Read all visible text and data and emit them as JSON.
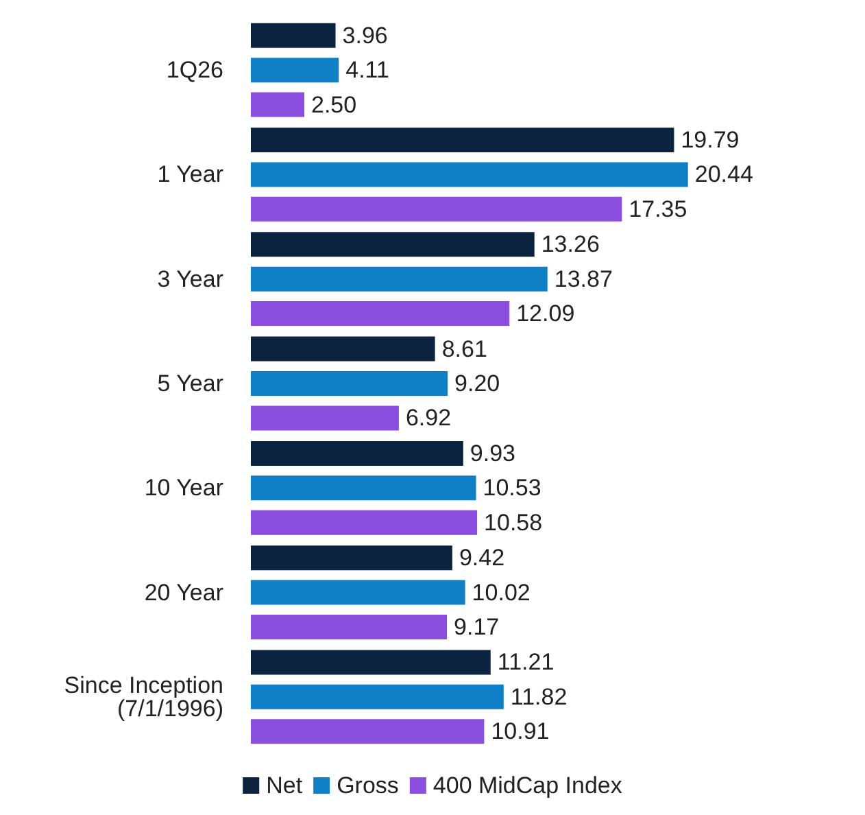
{
  "chart_data": {
    "type": "bar",
    "orientation": "horizontal",
    "categories": [
      "1Q26",
      "1 Year",
      "3 Year",
      "5 Year",
      "10 Year",
      "20 Year",
      "Since Inception\n(7/1/1996)"
    ],
    "series": [
      {
        "name": "Net",
        "color": "#0c2340",
        "values": [
          3.96,
          19.79,
          13.26,
          8.61,
          9.93,
          9.42,
          11.21
        ],
        "value_labels": [
          "3.96",
          "19.79",
          "13.26",
          "8.61",
          "9.93",
          "9.42",
          "11.21"
        ]
      },
      {
        "name": "Gross",
        "color": "#0f7fc6",
        "values": [
          4.11,
          20.44,
          13.87,
          9.2,
          10.53,
          10.02,
          11.82
        ],
        "value_labels": [
          "4.11",
          "20.44",
          "13.87",
          "9.20",
          "10.53",
          "10.02",
          "11.82"
        ]
      },
      {
        "name": "400 MidCap Index",
        "color": "#8a4fdf",
        "values": [
          2.5,
          17.35,
          12.09,
          6.92,
          10.58,
          9.17,
          10.91
        ],
        "value_labels": [
          "2.50",
          "17.35",
          "12.09",
          "6.92",
          "10.58",
          "9.17",
          "10.91"
        ]
      }
    ],
    "legend": "bottom"
  }
}
